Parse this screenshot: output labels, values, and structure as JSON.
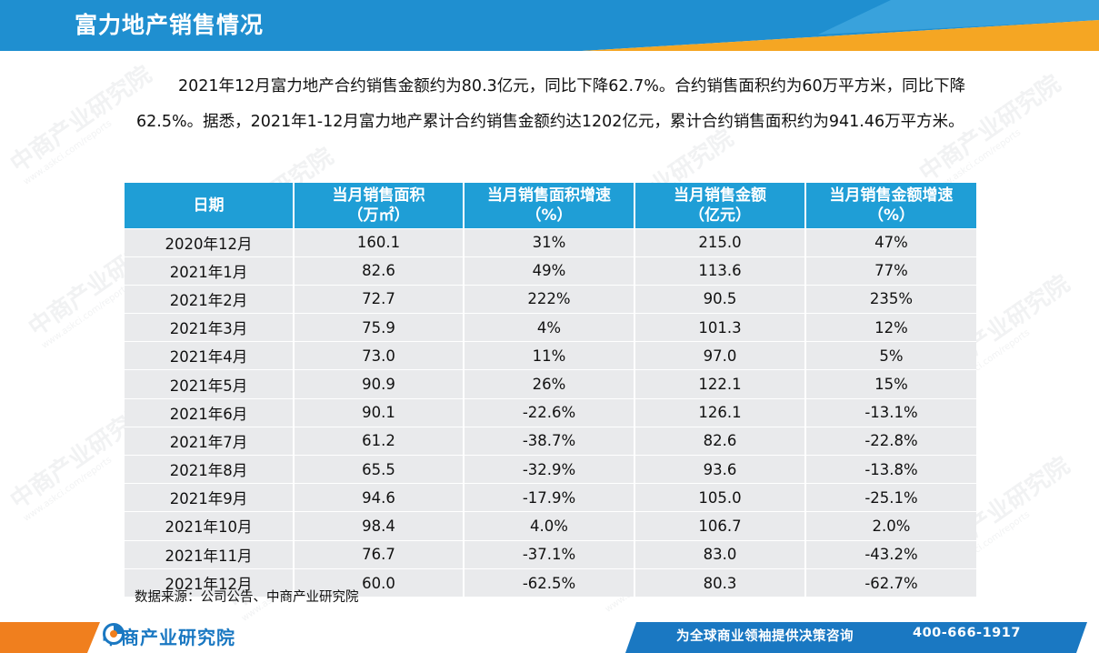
{
  "header": {
    "title": "富力地产销售情况"
  },
  "intro": {
    "text": "2021年12月富力地产合约销售金额约为80.3亿元，同比下降62.7%。合约销售面积约为60万平方米，同比下降62.5%。据悉，2021年1-12月富力地产累计合约销售金额约达1202亿元，累计合约销售面积约为941.46万平方米。"
  },
  "table": {
    "headers": [
      [
        "日期",
        ""
      ],
      [
        "当月销售面积",
        "（万㎡）"
      ],
      [
        "当月销售面积增速",
        "（%）"
      ],
      [
        "当月销售金额",
        "（亿元）"
      ],
      [
        "当月销售金额增速",
        "（%）"
      ]
    ],
    "rows": [
      [
        "2020年12月",
        "160.1",
        "31%",
        "215.0",
        "47%"
      ],
      [
        "2021年1月",
        "82.6",
        "49%",
        "113.6",
        "77%"
      ],
      [
        "2021年2月",
        "72.7",
        "222%",
        "90.5",
        "235%"
      ],
      [
        "2021年3月",
        "75.9",
        "4%",
        "101.3",
        "12%"
      ],
      [
        "2021年4月",
        "73.0",
        "11%",
        "97.0",
        "5%"
      ],
      [
        "2021年5月",
        "90.9",
        "26%",
        "122.1",
        "15%"
      ],
      [
        "2021年6月",
        "90.1",
        "-22.6%",
        "126.1",
        "-13.1%"
      ],
      [
        "2021年7月",
        "61.2",
        "-38.7%",
        "82.6",
        "-22.8%"
      ],
      [
        "2021年8月",
        "65.5",
        "-32.9%",
        "93.6",
        "-13.8%"
      ],
      [
        "2021年9月",
        "94.6",
        "-17.9%",
        "105.0",
        "-25.1%"
      ],
      [
        "2021年10月",
        "98.4",
        "4.0%",
        "106.7",
        "2.0%"
      ],
      [
        "2021年11月",
        "76.7",
        "-37.1%",
        "83.0",
        "-43.2%"
      ],
      [
        "2021年12月",
        "60.0",
        "-62.5%",
        "80.3",
        "-62.7%"
      ]
    ]
  },
  "source": "数据来源：公司公告、中商产业研究院",
  "footer": {
    "logo_text": "中商产业研究院",
    "slogan": "为全球商业领袖提供决策咨询",
    "phone": "400-666-1917"
  },
  "watermark": {
    "text": "中商产业研究院",
    "url": "www.askci.com/reports"
  },
  "colors": {
    "header_blue": "#1f8fd0",
    "header_orange": "#f5a623",
    "table_header": "#1f9ed6",
    "table_cell": "#e9eaec",
    "logo_blue": "#1a78c2"
  }
}
